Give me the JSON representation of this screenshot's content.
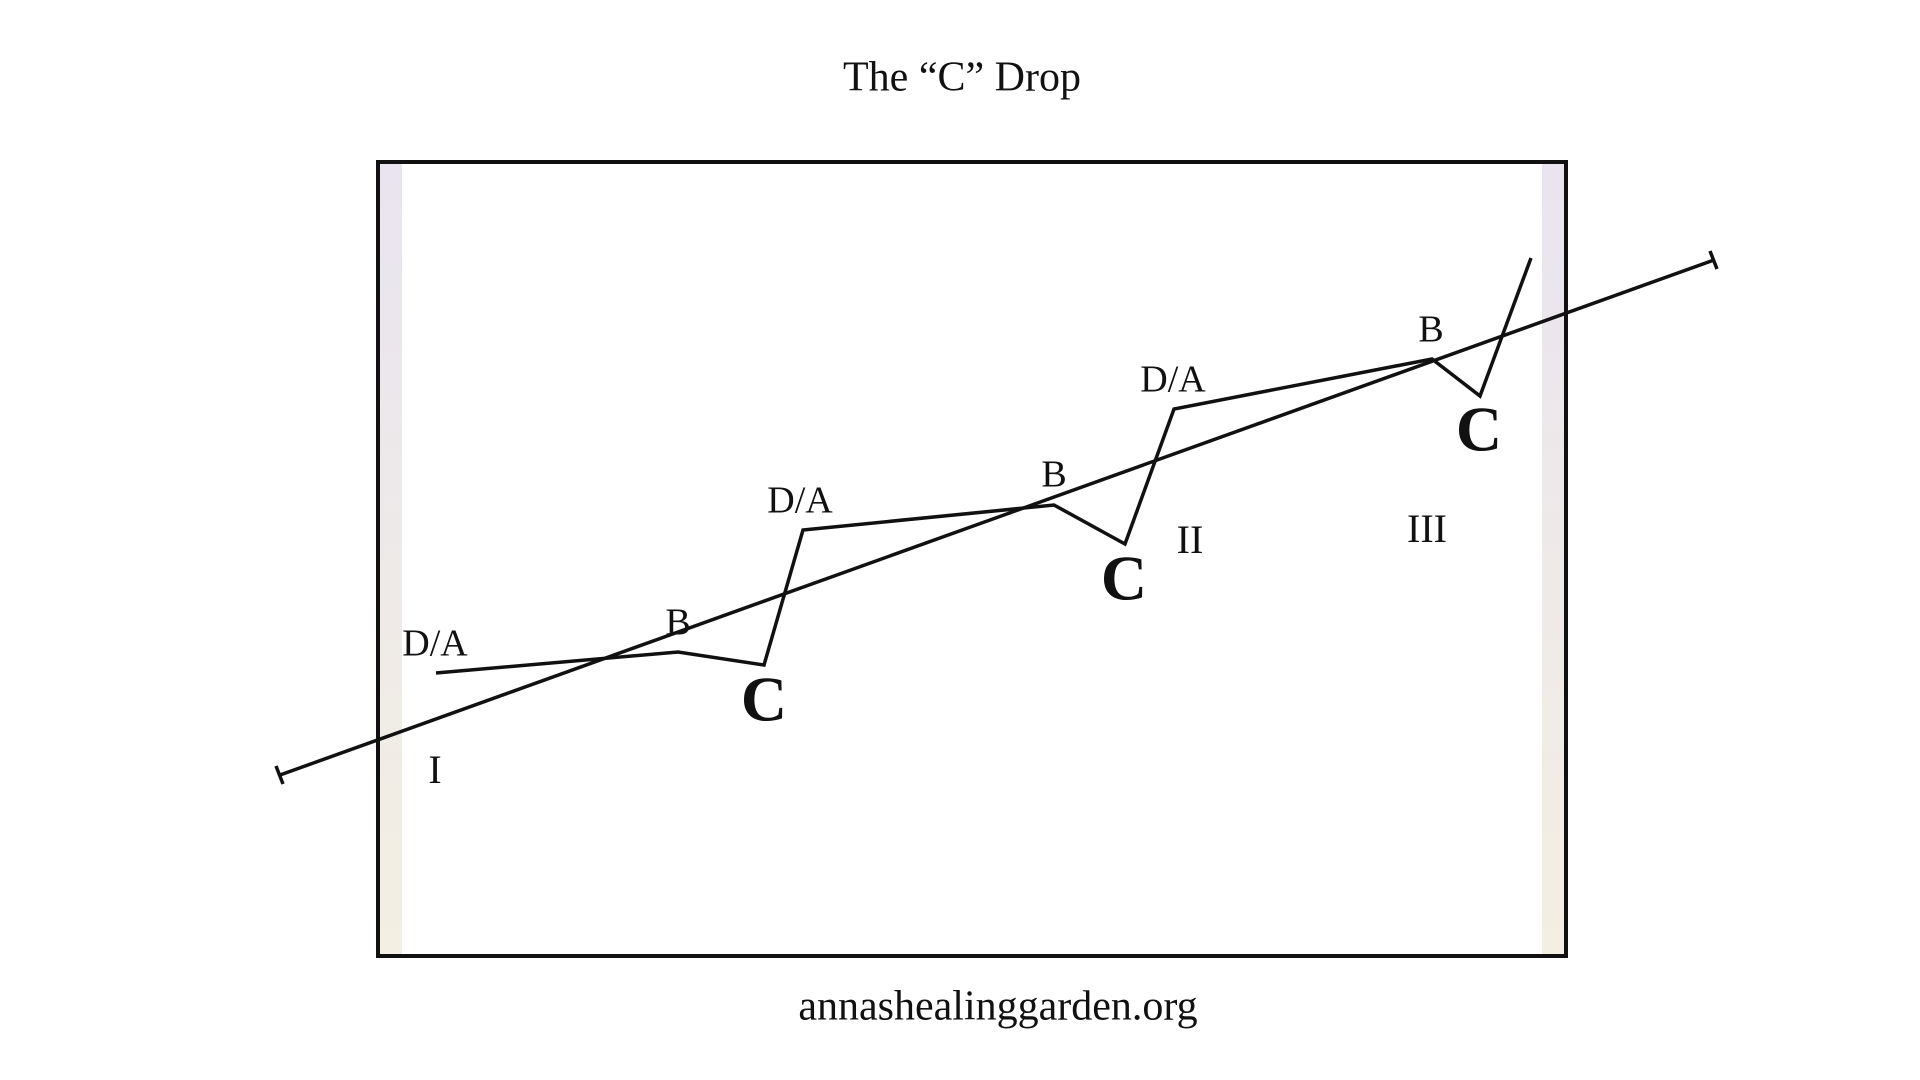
{
  "title": "The “C” Drop",
  "waves": [
    {
      "peak": "D/A",
      "pullback": "B",
      "drop": "C"
    },
    {
      "peak": "D/A",
      "pullback": "B",
      "drop": "C"
    },
    {
      "peak": "D/A",
      "pullback": "B",
      "drop": "C"
    }
  ],
  "segments": [
    "I",
    "II",
    "III"
  ],
  "footer": "annashealinggarden.org"
}
